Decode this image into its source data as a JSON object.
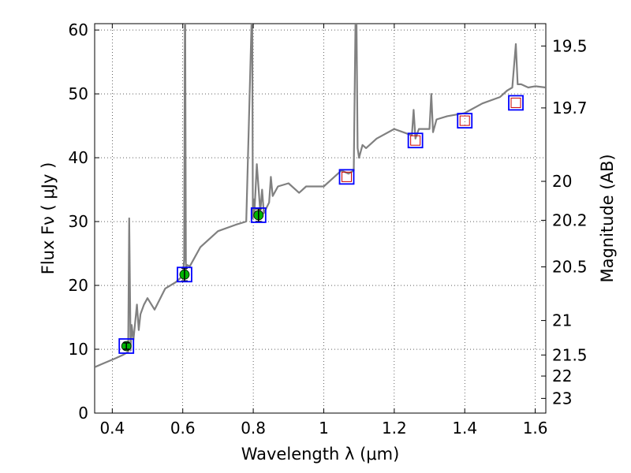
{
  "chart_data": {
    "type": "line",
    "title": "",
    "xlabel": "Wavelength  λ (μm)",
    "ylabel": "Flux  Fν  ( μJy )",
    "y2label": "Magnitude (AB)",
    "xlim": [
      0.35,
      1.63
    ],
    "ylim": [
      0,
      61
    ],
    "grid": true,
    "legend": "none",
    "x_ticks": [
      {
        "value": 0.4,
        "label": "0.4"
      },
      {
        "value": 0.6,
        "label": "0.6"
      },
      {
        "value": 0.8,
        "label": "0.8"
      },
      {
        "value": 1.0,
        "label": "1"
      },
      {
        "value": 1.2,
        "label": "1.2"
      },
      {
        "value": 1.4,
        "label": "1.4"
      },
      {
        "value": 1.6,
        "label": "1.6"
      }
    ],
    "y_ticks": [
      {
        "value": 0,
        "label": "0"
      },
      {
        "value": 10,
        "label": "10"
      },
      {
        "value": 20,
        "label": "20"
      },
      {
        "value": 30,
        "label": "30"
      },
      {
        "value": 40,
        "label": "40"
      },
      {
        "value": 50,
        "label": "50"
      },
      {
        "value": 60,
        "label": "60"
      }
    ],
    "y2_ticks": [
      {
        "flux": 57.5,
        "label": "19.5"
      },
      {
        "flux": 47.8,
        "label": "19.7"
      },
      {
        "flux": 36.3,
        "label": "20"
      },
      {
        "flux": 30.2,
        "label": "20.2"
      },
      {
        "flux": 22.9,
        "label": "20.5"
      },
      {
        "flux": 14.5,
        "label": "21"
      },
      {
        "flux": 9.1,
        "label": "21.5"
      },
      {
        "flux": 5.8,
        "label": "22"
      },
      {
        "flux": 2.3,
        "label": "23"
      }
    ],
    "series": [
      {
        "role": "model-spectrum",
        "color": "#808080",
        "x": [
          0.35,
          0.38,
          0.41,
          0.43,
          0.445,
          0.448,
          0.452,
          0.455,
          0.46,
          0.47,
          0.475,
          0.48,
          0.49,
          0.5,
          0.52,
          0.55,
          0.58,
          0.6,
          0.604,
          0.606,
          0.607,
          0.609,
          0.612,
          0.62,
          0.65,
          0.7,
          0.75,
          0.78,
          0.795,
          0.797,
          0.799,
          0.801,
          0.803,
          0.81,
          0.82,
          0.825,
          0.83,
          0.845,
          0.85,
          0.855,
          0.87,
          0.9,
          0.93,
          0.95,
          1.0,
          1.02,
          1.05,
          1.07,
          1.085,
          1.09,
          1.093,
          1.096,
          1.1,
          1.11,
          1.12,
          1.15,
          1.2,
          1.25,
          1.255,
          1.26,
          1.27,
          1.3,
          1.305,
          1.31,
          1.32,
          1.35,
          1.4,
          1.45,
          1.5,
          1.52,
          1.535,
          1.545,
          1.55,
          1.56,
          1.58,
          1.6,
          1.63
        ],
        "values": [
          7.2,
          7.9,
          8.6,
          9.1,
          9.6,
          30.5,
          9.8,
          13.8,
          11.5,
          17.0,
          13.0,
          15.5,
          17.0,
          18.0,
          16.2,
          19.5,
          20.5,
          21.5,
          24.0,
          61.0,
          61.0,
          22.5,
          23.2,
          23.0,
          26.0,
          28.5,
          29.5,
          30.0,
          61.0,
          61.0,
          30.5,
          33.5,
          31.0,
          39.0,
          31.5,
          35.0,
          31.3,
          33.0,
          37.0,
          34.0,
          35.5,
          36.0,
          34.5,
          35.5,
          35.5,
          36.5,
          38.0,
          37.5,
          38.0,
          61.0,
          61.0,
          41.5,
          40.0,
          42.0,
          41.5,
          43.0,
          44.5,
          43.5,
          47.5,
          43.0,
          44.5,
          44.5,
          50.0,
          44.0,
          46.0,
          46.5,
          47.0,
          48.5,
          49.5,
          50.5,
          51.0,
          57.8,
          51.5,
          51.5,
          51.0,
          51.2,
          51.0
        ]
      },
      {
        "role": "photometry-observed",
        "marker": "circle-with-errorbar",
        "fill": "#00b400",
        "x": [
          0.44,
          0.605,
          0.815
        ],
        "values": [
          10.5,
          21.7,
          31.0
        ],
        "errors": [
          0.5,
          1.0,
          1.0
        ]
      },
      {
        "role": "photometry-limits",
        "marker": "open-square",
        "edge": "#cc0000",
        "x": [
          1.065,
          1.26,
          1.4,
          1.545
        ],
        "values": [
          37.0,
          42.7,
          45.8,
          48.6
        ]
      },
      {
        "role": "model-band-flux",
        "marker": "open-square",
        "edge": "#0000ff",
        "x": [
          0.44,
          0.605,
          0.815,
          1.065,
          1.26,
          1.4,
          1.545
        ],
        "values": [
          10.5,
          21.7,
          31.0,
          37.0,
          42.7,
          45.8,
          48.6
        ]
      }
    ]
  }
}
